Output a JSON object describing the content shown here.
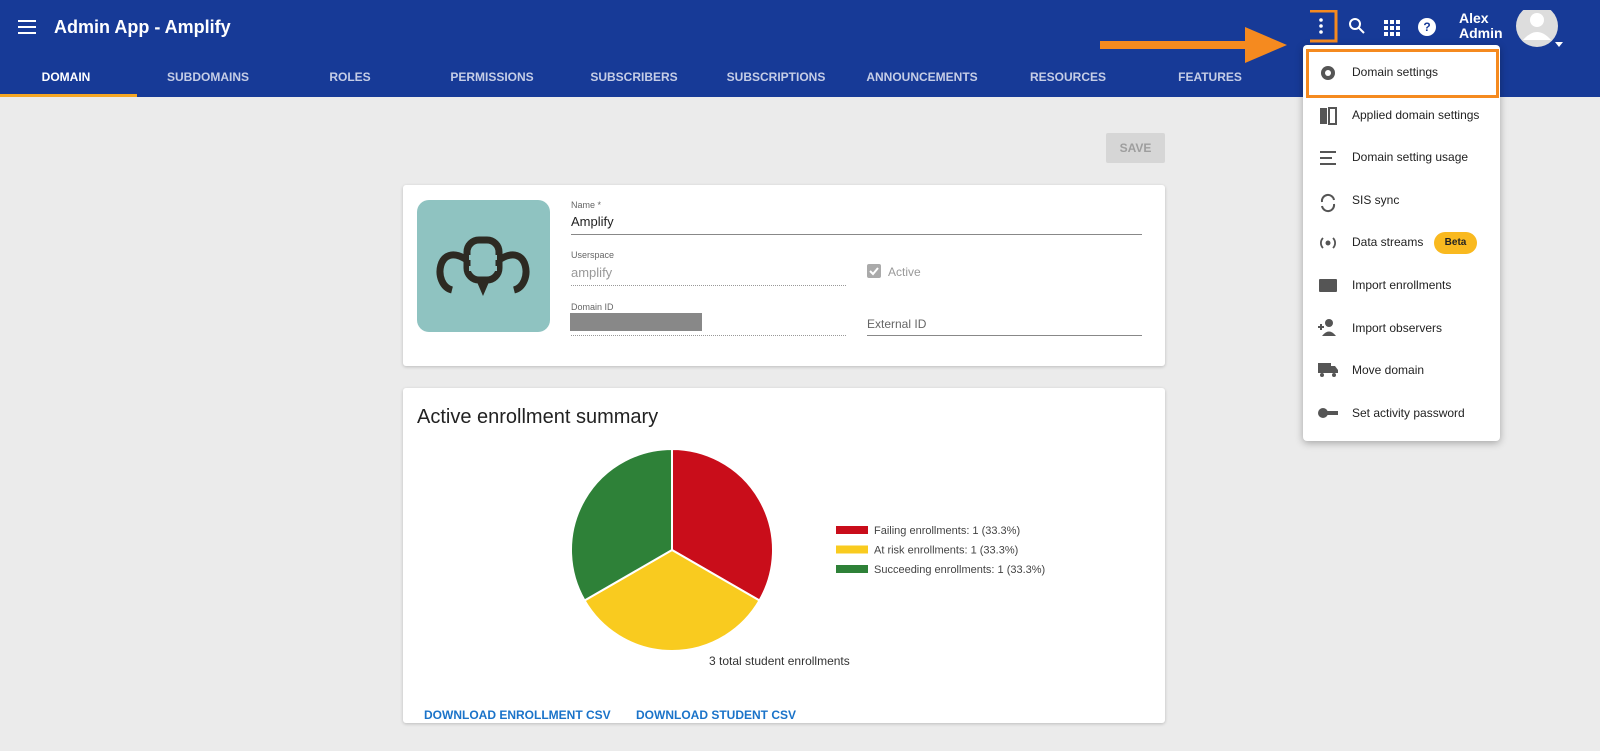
{
  "header": {
    "title": "Admin App - Amplify",
    "user": [
      "Alex",
      "Admin"
    ]
  },
  "tabs": [
    "DOMAIN",
    "SUBDOMAINS",
    "ROLES",
    "PERMISSIONS",
    "SUBSCRIBERS",
    "SUBSCRIPTIONS",
    "ANNOUNCEMENTS",
    "RESOURCES",
    "FEATURES"
  ],
  "save_button": "SAVE",
  "form": {
    "name_label": "Name *",
    "name": "Amplify",
    "userspace_label": "Userspace",
    "userspace": "amplify",
    "active_label": "Active",
    "domain_id_label": "Domain ID",
    "external_id_label": "External ID"
  },
  "summary": {
    "title": "Active enrollment summary",
    "caption": "3 total student enrollments",
    "links": [
      "DOWNLOAD ENROLLMENT CSV",
      "DOWNLOAD STUDENT CSV"
    ]
  },
  "chart_data": {
    "type": "pie",
    "categories": [
      "Failing enrollments: 1 (33.3%)",
      "At risk enrollments: 1 (33.3%)",
      "Succeeding enrollments: 1 (33.3%)"
    ],
    "values": [
      1,
      1,
      1
    ],
    "colors": [
      "#c90d1a",
      "#f9cb1f",
      "#2e8138"
    ]
  },
  "menu": {
    "items": [
      "Domain settings",
      "Applied domain settings",
      "Domain setting usage",
      "SIS sync",
      "Data streams",
      "Import enrollments",
      "Import observers",
      "Move domain",
      "Set activity password"
    ],
    "badge": "Beta"
  }
}
